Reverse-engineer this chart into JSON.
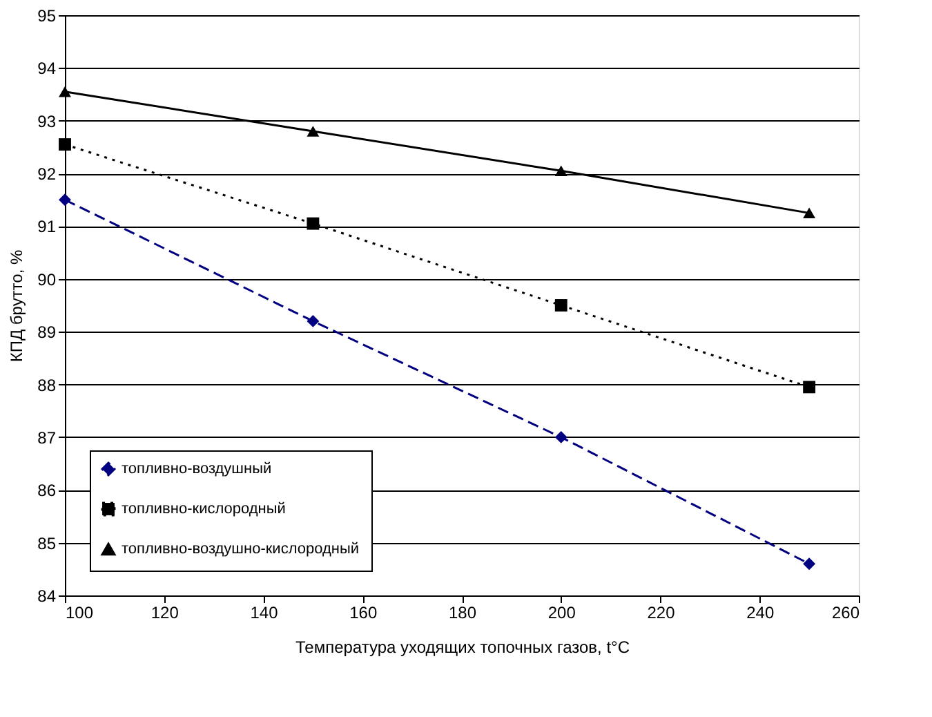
{
  "chart_data": {
    "type": "line",
    "xlabel": "Температура уходящих топочных газов, t°C",
    "ylabel": "КПД брутто, %",
    "x": [
      100,
      150,
      200,
      250
    ],
    "series": [
      {
        "name": "топливно-воздушный",
        "color": "#000080",
        "values": [
          91.5,
          89.2,
          87.0,
          84.6
        ],
        "marker": "diamond",
        "line_style": "dashed"
      },
      {
        "name": "топливно-кислородный",
        "color": "#000000",
        "values": [
          92.55,
          91.05,
          89.5,
          87.95
        ],
        "marker": "square",
        "line_style": "dotted"
      },
      {
        "name": "топливно-воздушно-кислородный",
        "color": "#000000",
        "values": [
          93.55,
          92.8,
          92.05,
          91.25
        ],
        "marker": "triangle",
        "line_style": "solid"
      }
    ],
    "xlim": [
      100,
      260
    ],
    "xticks": [
      100,
      120,
      140,
      160,
      180,
      200,
      220,
      240,
      260
    ],
    "ylim": [
      84,
      95
    ],
    "yticks": [
      84,
      85,
      86,
      87,
      88,
      89,
      90,
      91,
      92,
      93,
      94,
      95
    ],
    "grid": "y",
    "legend": "bottom left"
  }
}
